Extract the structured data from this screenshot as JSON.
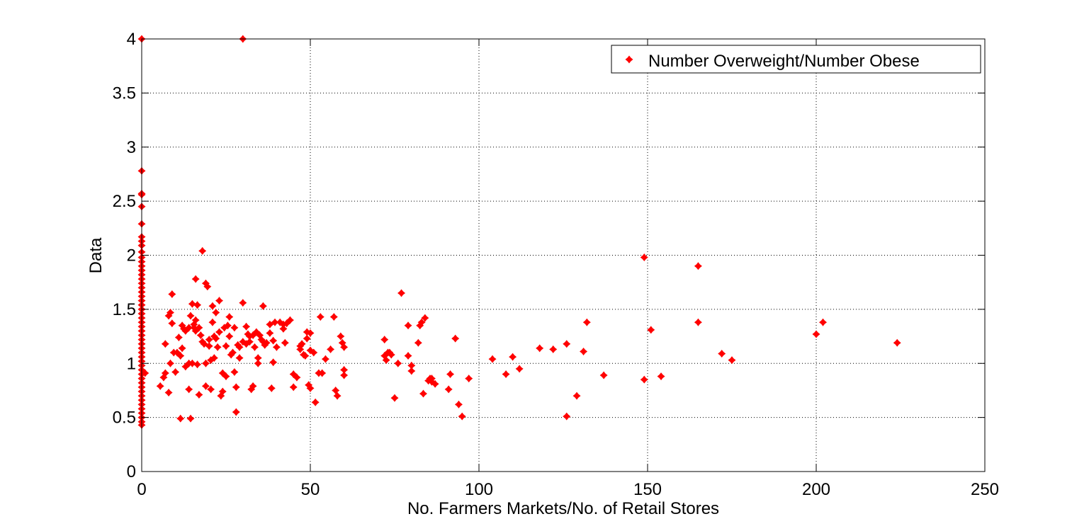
{
  "chart_data": {
    "type": "scatter",
    "title": "",
    "xlabel": "No. Farmers Markets/No. of Retail Stores",
    "ylabel": "Data",
    "xlim": [
      0,
      250
    ],
    "ylim": [
      0,
      4
    ],
    "xticks": [
      0,
      50,
      100,
      150,
      200,
      250
    ],
    "yticks": [
      0,
      0.5,
      1,
      1.5,
      2,
      2.5,
      3,
      3.5,
      4
    ],
    "xtick_labels": [
      "0",
      "50",
      "100",
      "150",
      "200",
      "250"
    ],
    "ytick_labels": [
      "0",
      "0.5",
      "1",
      "1.5",
      "2",
      "2.5",
      "3",
      "3.5",
      "4"
    ],
    "grid": true,
    "legend_position": "top-right",
    "marker_color": "#ff0000",
    "series": [
      {
        "name": "Number Overweight/Number Obese",
        "points": [
          [
            0,
            4.0
          ],
          [
            0,
            2.78
          ],
          [
            0,
            2.57
          ],
          [
            0,
            2.56
          ],
          [
            0,
            2.45
          ],
          [
            0,
            2.29
          ],
          [
            0,
            2.17
          ],
          [
            0,
            2.13
          ],
          [
            0,
            2.09
          ],
          [
            0,
            2.03
          ],
          [
            0,
            1.98
          ],
          [
            0,
            1.94
          ],
          [
            0,
            1.9
          ],
          [
            0,
            1.86
          ],
          [
            0,
            1.82
          ],
          [
            0,
            1.78
          ],
          [
            0,
            1.74
          ],
          [
            0,
            1.7
          ],
          [
            0,
            1.66
          ],
          [
            0,
            1.62
          ],
          [
            0,
            1.58
          ],
          [
            0,
            1.54
          ],
          [
            0,
            1.5
          ],
          [
            0,
            1.46
          ],
          [
            0,
            1.42
          ],
          [
            0,
            1.38
          ],
          [
            0,
            1.34
          ],
          [
            0,
            1.3
          ],
          [
            0,
            1.26
          ],
          [
            0,
            1.22
          ],
          [
            0,
            1.18
          ],
          [
            0,
            1.14
          ],
          [
            0,
            1.1
          ],
          [
            0,
            1.06
          ],
          [
            0,
            1.02
          ],
          [
            0,
            0.98
          ],
          [
            0,
            0.94
          ],
          [
            0,
            0.9
          ],
          [
            0,
            0.86
          ],
          [
            0,
            0.82
          ],
          [
            0,
            0.78
          ],
          [
            0,
            0.74
          ],
          [
            0,
            0.7
          ],
          [
            0,
            0.66
          ],
          [
            0,
            0.62
          ],
          [
            0,
            0.58
          ],
          [
            0,
            0.54
          ],
          [
            0,
            0.5
          ],
          [
            0,
            0.46
          ],
          [
            0,
            0.43
          ],
          [
            1,
            0.91
          ],
          [
            30,
            4.0
          ],
          [
            5.5,
            0.79
          ],
          [
            6.5,
            0.87
          ],
          [
            7,
            0.91
          ],
          [
            7,
            1.18
          ],
          [
            8,
            0.73
          ],
          [
            8,
            1.44
          ],
          [
            8.5,
            1.47
          ],
          [
            8.5,
            1.0
          ],
          [
            9,
            1.37
          ],
          [
            9,
            1.64
          ],
          [
            9.5,
            1.1
          ],
          [
            10,
            0.92
          ],
          [
            10.5,
            1.1
          ],
          [
            11,
            1.24
          ],
          [
            11.5,
            1.07
          ],
          [
            11.5,
            0.49
          ],
          [
            12,
            1.14
          ],
          [
            12,
            1.35
          ],
          [
            12.5,
            1.32
          ],
          [
            13,
            0.97
          ],
          [
            13,
            1.3
          ],
          [
            14,
            1.0
          ],
          [
            14,
            1.33
          ],
          [
            14,
            0.76
          ],
          [
            14.5,
            1.44
          ],
          [
            14.5,
            0.49
          ],
          [
            15,
            1.55
          ],
          [
            15,
            1.0
          ],
          [
            15.5,
            1.36
          ],
          [
            15.5,
            1.33
          ],
          [
            16,
            1.78
          ],
          [
            16,
            1.3
          ],
          [
            16,
            1.4
          ],
          [
            16.5,
            0.99
          ],
          [
            16.5,
            1.54
          ],
          [
            17,
            0.71
          ],
          [
            17,
            1.33
          ],
          [
            17.5,
            1.26
          ],
          [
            18,
            2.04
          ],
          [
            18,
            1.2
          ],
          [
            18.5,
            1.18
          ],
          [
            19,
            1.0
          ],
          [
            19,
            1.74
          ],
          [
            19,
            0.79
          ],
          [
            19.5,
            1.71
          ],
          [
            20,
            1.22
          ],
          [
            20,
            1.16
          ],
          [
            20.5,
            1.03
          ],
          [
            20.5,
            0.76
          ],
          [
            21,
            1.53
          ],
          [
            21,
            1.38
          ],
          [
            21.5,
            1.25
          ],
          [
            21.5,
            1.05
          ],
          [
            22,
            1.47
          ],
          [
            22,
            1.23
          ],
          [
            22.5,
            1.15
          ],
          [
            23,
            1.58
          ],
          [
            23,
            1.29
          ],
          [
            23.5,
            0.7
          ],
          [
            24,
            0.74
          ],
          [
            24,
            0.91
          ],
          [
            24.5,
            1.33
          ],
          [
            25,
            1.16
          ],
          [
            25,
            0.88
          ],
          [
            25.5,
            1.35
          ],
          [
            26,
            1.43
          ],
          [
            26,
            1.25
          ],
          [
            26.5,
            1.08
          ],
          [
            27,
            1.1
          ],
          [
            27.5,
            0.92
          ],
          [
            27.5,
            1.33
          ],
          [
            28,
            0.55
          ],
          [
            28,
            0.78
          ],
          [
            28.5,
            1.17
          ],
          [
            29,
            1.15
          ],
          [
            29,
            1.05
          ],
          [
            30,
            1.56
          ],
          [
            30,
            1.2
          ],
          [
            31,
            1.18
          ],
          [
            31,
            1.34
          ],
          [
            31.5,
            1.27
          ],
          [
            32,
            1.2
          ],
          [
            32,
            1.25
          ],
          [
            32.5,
            0.76
          ],
          [
            33,
            0.79
          ],
          [
            33,
            1.26
          ],
          [
            33.5,
            1.15
          ],
          [
            34,
            1.29
          ],
          [
            34.5,
            1.05
          ],
          [
            34.5,
            1.0
          ],
          [
            35,
            1.26
          ],
          [
            35.5,
            1.22
          ],
          [
            36,
            1.53
          ],
          [
            36,
            1.2
          ],
          [
            36.5,
            1.17
          ],
          [
            37,
            1.19
          ],
          [
            38,
            1.36
          ],
          [
            38,
            1.28
          ],
          [
            38.5,
            0.77
          ],
          [
            39,
            1.21
          ],
          [
            39,
            1.01
          ],
          [
            39.5,
            1.38
          ],
          [
            40,
            1.15
          ],
          [
            41,
            1.38
          ],
          [
            42,
            1.32
          ],
          [
            42,
            1.36
          ],
          [
            42.5,
            1.19
          ],
          [
            43,
            1.37
          ],
          [
            44,
            1.4
          ],
          [
            45,
            0.78
          ],
          [
            45,
            0.9
          ],
          [
            46,
            0.87
          ],
          [
            47,
            1.16
          ],
          [
            47,
            1.13
          ],
          [
            47.5,
            1.18
          ],
          [
            48,
            1.08
          ],
          [
            48.5,
            1.07
          ],
          [
            49,
            1.29
          ],
          [
            49,
            1.23
          ],
          [
            49.5,
            0.8
          ],
          [
            50,
            1.28
          ],
          [
            50,
            1.12
          ],
          [
            50,
            0.77
          ],
          [
            51,
            1.1
          ],
          [
            51.5,
            0.64
          ],
          [
            52.5,
            0.91
          ],
          [
            53,
            1.43
          ],
          [
            53.5,
            0.91
          ],
          [
            54.5,
            1.04
          ],
          [
            56,
            1.13
          ],
          [
            57,
            1.43
          ],
          [
            57.5,
            0.75
          ],
          [
            58,
            0.7
          ],
          [
            59,
            1.25
          ],
          [
            59.5,
            1.19
          ],
          [
            60,
            1.15
          ],
          [
            60,
            0.94
          ],
          [
            60,
            0.89
          ],
          [
            72,
            1.22
          ],
          [
            72,
            1.07
          ],
          [
            72.5,
            1.03
          ],
          [
            73,
            1.1
          ],
          [
            73.5,
            1.1
          ],
          [
            74,
            1.08
          ],
          [
            75,
            0.68
          ],
          [
            76,
            1.0
          ],
          [
            77,
            1.65
          ],
          [
            79,
            1.35
          ],
          [
            79,
            1.07
          ],
          [
            80,
            0.98
          ],
          [
            80,
            0.93
          ],
          [
            82,
            1.19
          ],
          [
            82.5,
            1.35
          ],
          [
            83,
            1.38
          ],
          [
            83.5,
            0.72
          ],
          [
            84,
            1.42
          ],
          [
            85,
            0.84
          ],
          [
            85.5,
            0.86
          ],
          [
            86,
            0.86
          ],
          [
            86,
            0.83
          ],
          [
            87,
            0.81
          ],
          [
            91,
            0.76
          ],
          [
            91.5,
            0.9
          ],
          [
            93,
            1.23
          ],
          [
            94,
            0.62
          ],
          [
            95,
            0.51
          ],
          [
            97,
            0.86
          ],
          [
            104,
            1.04
          ],
          [
            108,
            0.9
          ],
          [
            110,
            1.06
          ],
          [
            112,
            0.95
          ],
          [
            118,
            1.14
          ],
          [
            122,
            1.13
          ],
          [
            126,
            1.18
          ],
          [
            126,
            0.51
          ],
          [
            129,
            0.7
          ],
          [
            131,
            1.11
          ],
          [
            132,
            1.38
          ],
          [
            137,
            0.89
          ],
          [
            149,
            1.98
          ],
          [
            149,
            0.85
          ],
          [
            151,
            1.31
          ],
          [
            154,
            0.88
          ],
          [
            165,
            1.9
          ],
          [
            165,
            1.38
          ],
          [
            172,
            1.09
          ],
          [
            175,
            1.03
          ],
          [
            200,
            1.27
          ],
          [
            202,
            1.38
          ],
          [
            224,
            1.19
          ]
        ]
      }
    ]
  }
}
